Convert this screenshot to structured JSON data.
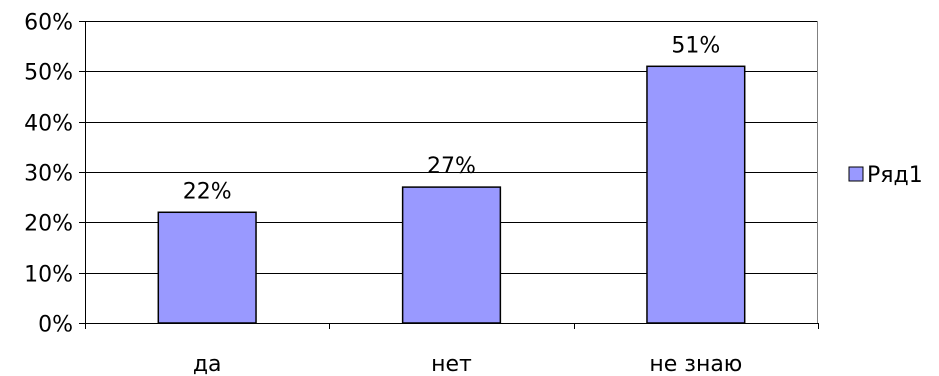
{
  "chart_data": {
    "type": "bar",
    "categories": [
      "да",
      "нет",
      "не знаю"
    ],
    "series": [
      {
        "name": "Ряд1",
        "values": [
          22,
          27,
          51
        ],
        "labels": [
          "22%",
          "27%",
          "51%"
        ]
      }
    ],
    "title": "",
    "xlabel": "",
    "ylabel": "",
    "ylim": [
      0,
      60
    ],
    "yticks": [
      "0%",
      "10%",
      "20%",
      "30%",
      "40%",
      "50%",
      "60%"
    ],
    "grid": true,
    "legend": "right",
    "colors": {
      "bar_fill": "#9999ff",
      "bar_stroke": "#000000",
      "gridline": "#000000"
    }
  }
}
